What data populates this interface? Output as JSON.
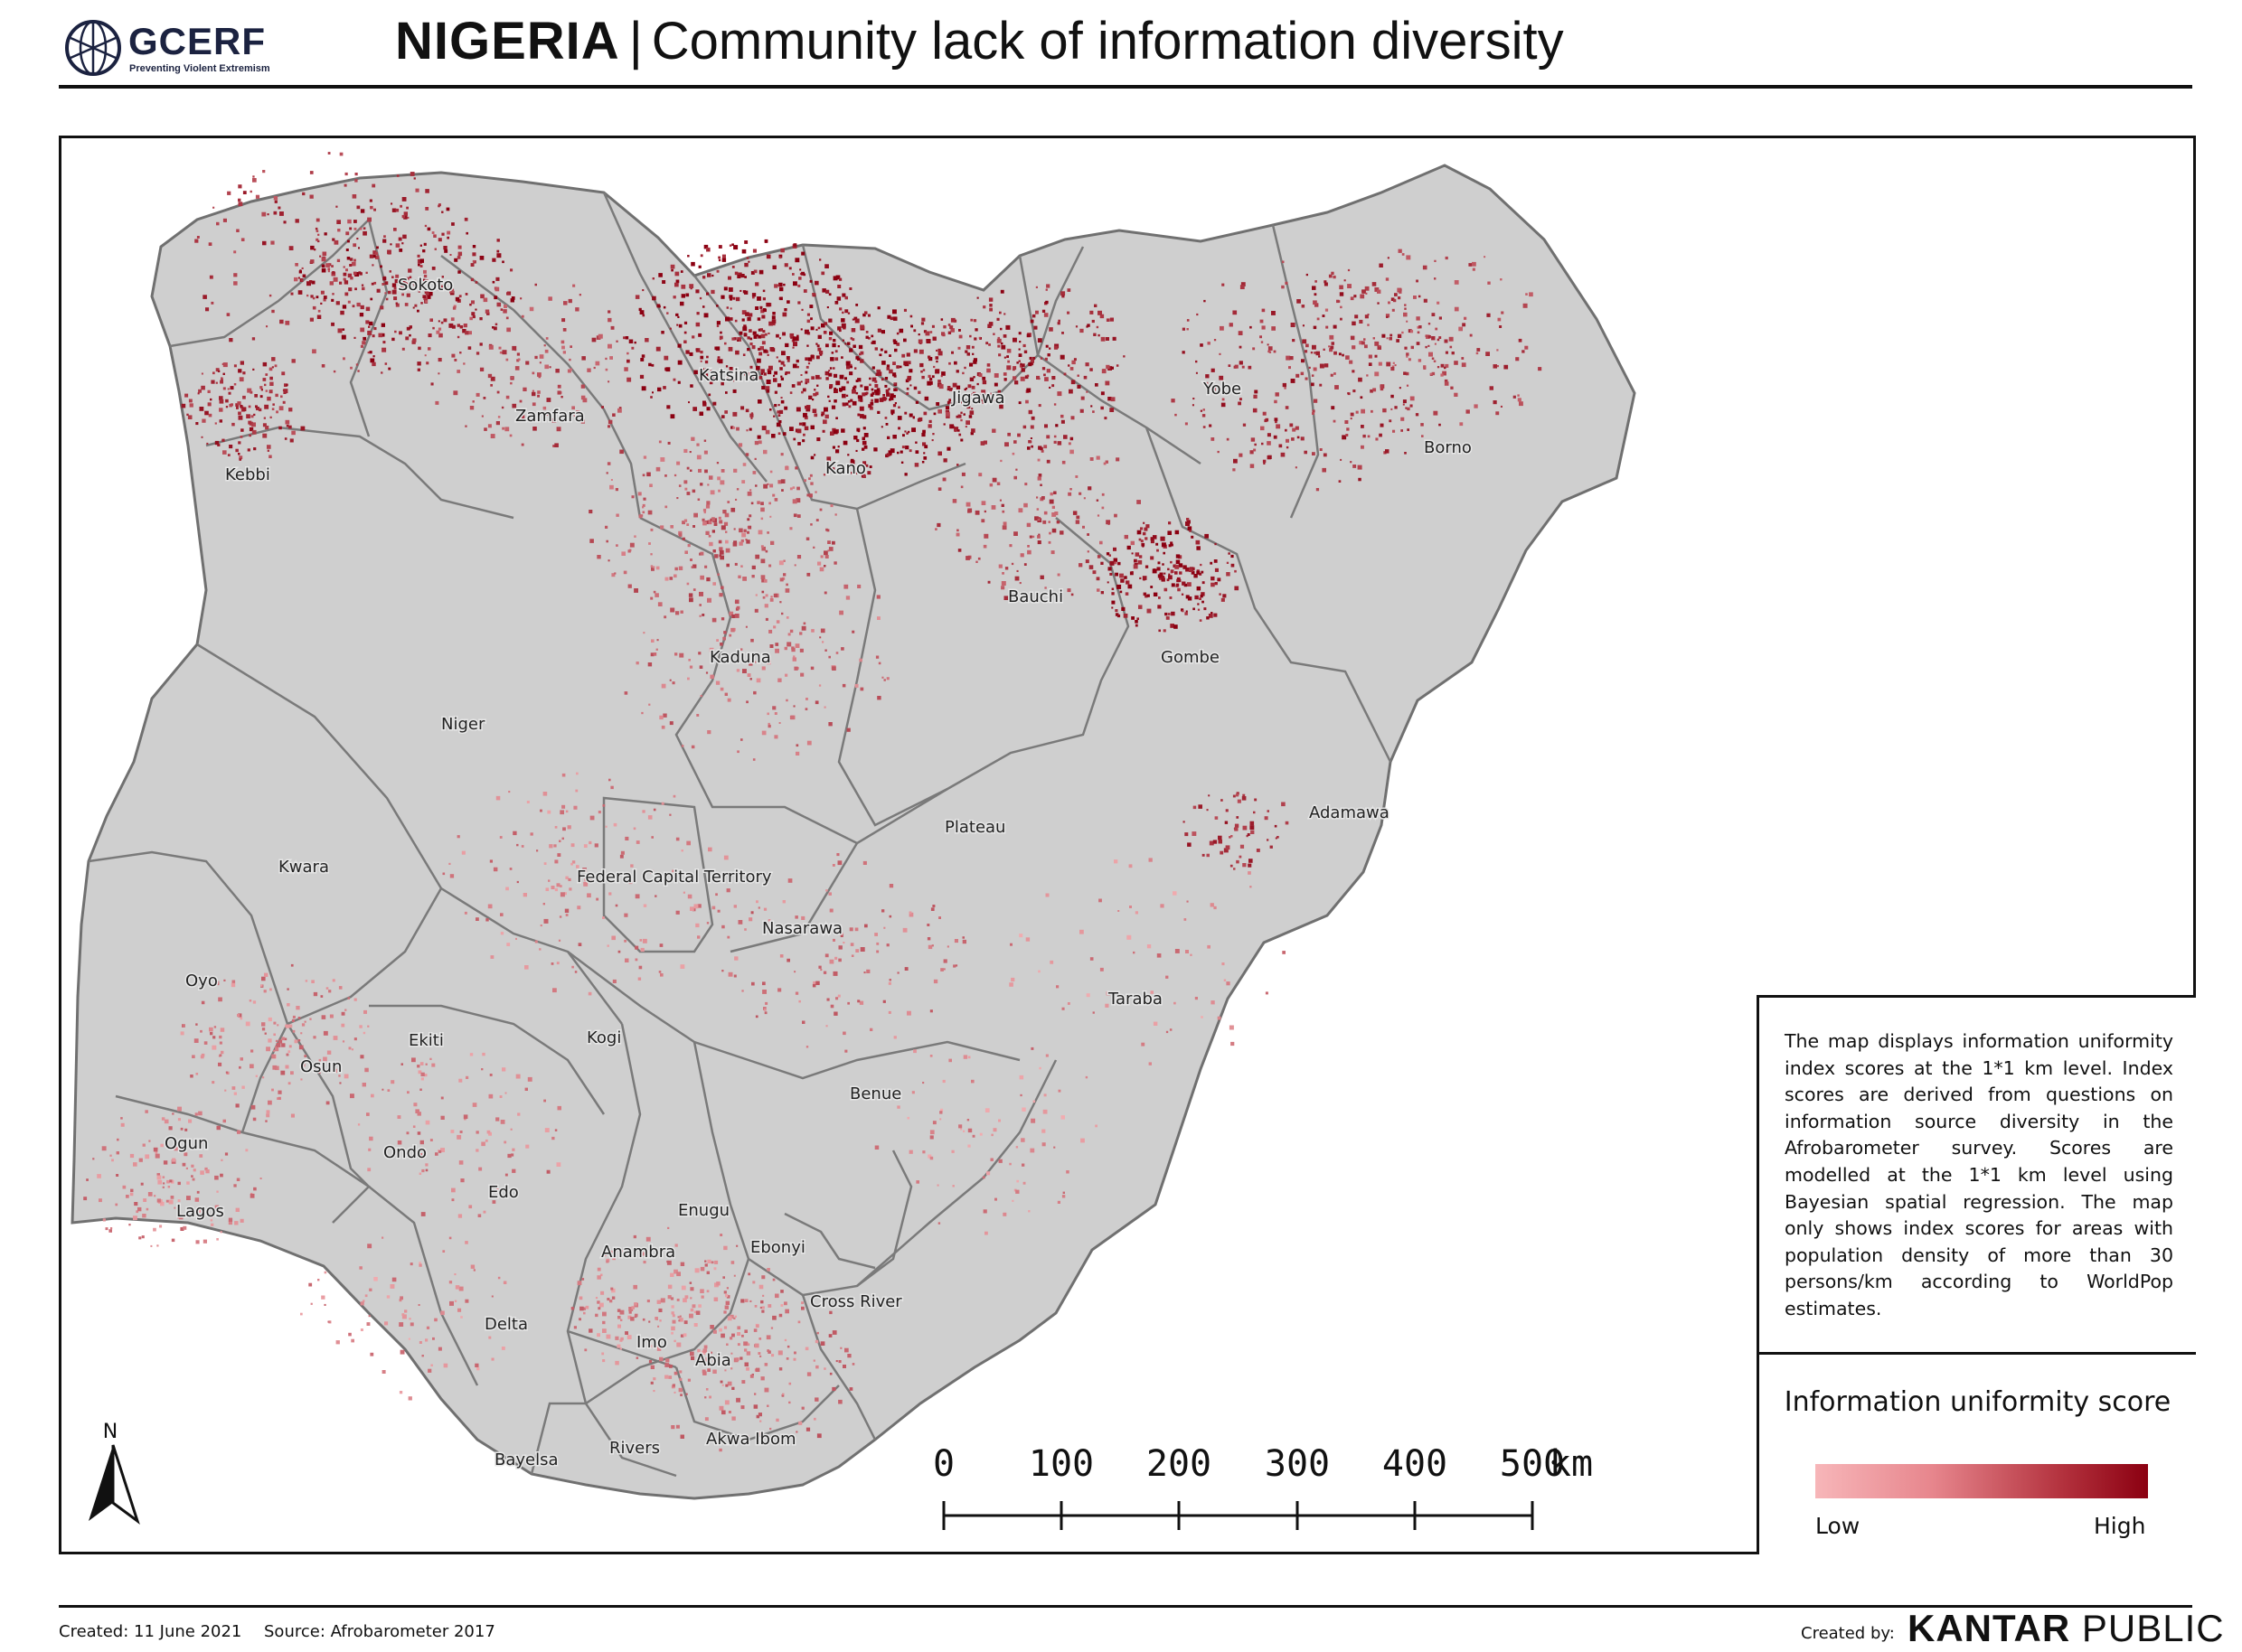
{
  "header": {
    "logo_text": "GCERF",
    "logo_tagline": "Preventing Violent Extremism",
    "title_country": "NIGERIA",
    "title_separator": "|",
    "title_subject": "Community lack of information diversity"
  },
  "map": {
    "states": [
      {
        "name": "Sokoto"
      },
      {
        "name": "Katsina"
      },
      {
        "name": "Jigawa"
      },
      {
        "name": "Yobe"
      },
      {
        "name": "Zamfara"
      },
      {
        "name": "Kano"
      },
      {
        "name": "Borno"
      },
      {
        "name": "Kebbi"
      },
      {
        "name": "Bauchi"
      },
      {
        "name": "Kaduna"
      },
      {
        "name": "Gombe"
      },
      {
        "name": "Niger"
      },
      {
        "name": "Plateau"
      },
      {
        "name": "Adamawa"
      },
      {
        "name": "Kwara"
      },
      {
        "name": "Federal Capital Territory"
      },
      {
        "name": "Nasarawa"
      },
      {
        "name": "Oyo"
      },
      {
        "name": "Taraba"
      },
      {
        "name": "Ekiti"
      },
      {
        "name": "Kogi"
      },
      {
        "name": "Osun"
      },
      {
        "name": "Benue"
      },
      {
        "name": "Ogun"
      },
      {
        "name": "Ondo"
      },
      {
        "name": "Edo"
      },
      {
        "name": "Lagos"
      },
      {
        "name": "Enugu"
      },
      {
        "name": "Ebonyi"
      },
      {
        "name": "Anambra"
      },
      {
        "name": "Cross River"
      },
      {
        "name": "Delta"
      },
      {
        "name": "Imo"
      },
      {
        "name": "Abia"
      },
      {
        "name": "Akwa Ibom"
      },
      {
        "name": "Bayelsa"
      },
      {
        "name": "Rivers"
      }
    ],
    "colors": {
      "land": "#cfcfcf",
      "border": "#707070",
      "low": "#f7b6b9",
      "high": "#8b0011"
    },
    "north_label": "N",
    "scale_bar": {
      "labels": [
        "0",
        "100",
        "200",
        "300",
        "400",
        "500"
      ],
      "unit": "km"
    }
  },
  "legend": {
    "description": "The map displays information uniformity index scores at the 1*1 km level. Index scores are derived from questions on information source diversity in the Afrobarometer survey. Scores are modelled at the 1*1 km level using Bayesian spatial regression. The map only shows index scores for areas with population density of more than 30 persons/km according to WorldPop estimates.",
    "title": "Information uniformity score",
    "low_label": "Low",
    "high_label": "High"
  },
  "footer": {
    "created": "Created: 11 June 2021",
    "source": "Source: Afrobarometer 2017",
    "created_by": "Created by:",
    "brand_bold": "KANTAR",
    "brand_light": "PUBLIC"
  }
}
